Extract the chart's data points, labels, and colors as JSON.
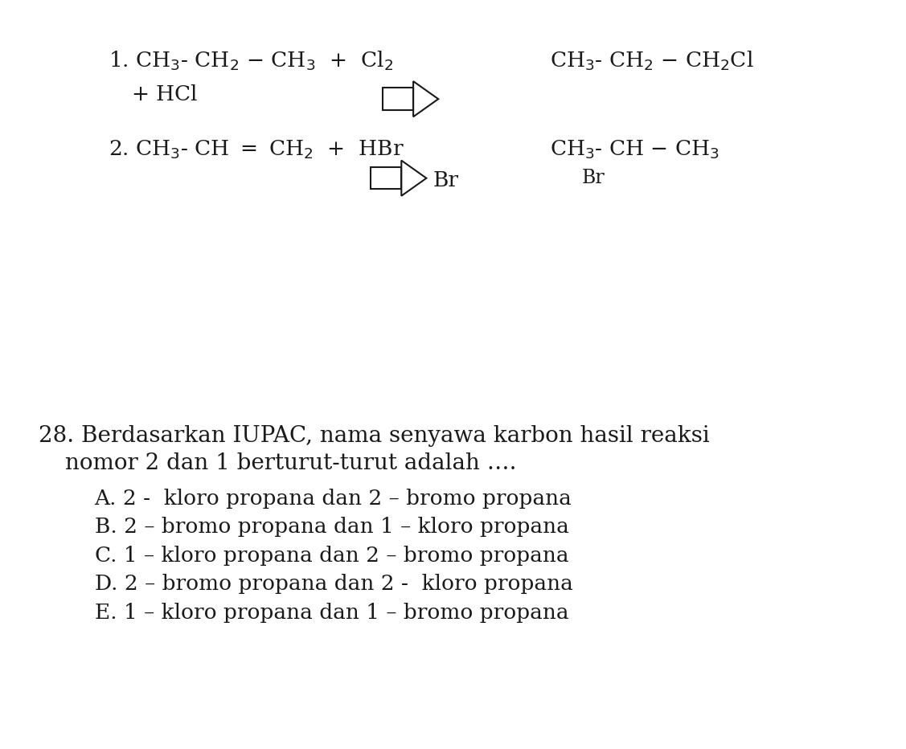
{
  "bg_color": "#ffffff",
  "text_color": "#1a1a1a",
  "figsize": [
    11.27,
    9.32
  ],
  "dpi": 100,
  "font_size_reaction": 19,
  "font_size_question": 20,
  "font_size_options": 19,
  "reaction1_left": "1. CH$_3$- CH$_2$ – CH$_3$  +  Cl$_2$",
  "reaction1_right": "CH$_3$- CH$_2$ – CH$_2$Cl",
  "reaction1_hcl": "+ HCl",
  "reaction2_left": "2. CH$_3$- CH = CH$_2$  +  HBr",
  "reaction2_right": "CH$_3$- CH – CH$_3$",
  "reaction2_br": "Br",
  "question_line1": "28. Berdasarkan IUPAC, nama senyawa karbon hasil reaksi",
  "question_line2": "nomor 2 dan 1 berturut-turut adalah ….",
  "option_A": "A. 2 -  kloro propana dan 2 – bromo propana",
  "option_B": "B. 2 – bromo propana dan 1 – kloro propana",
  "option_C": "C. 1 – kloro propana dan 2 – bromo propana",
  "option_D": "D. 2 – bromo propana dan 2 -  kloro propana",
  "option_E": "E. 1 – kloro propana dan 1 – bromo propana"
}
